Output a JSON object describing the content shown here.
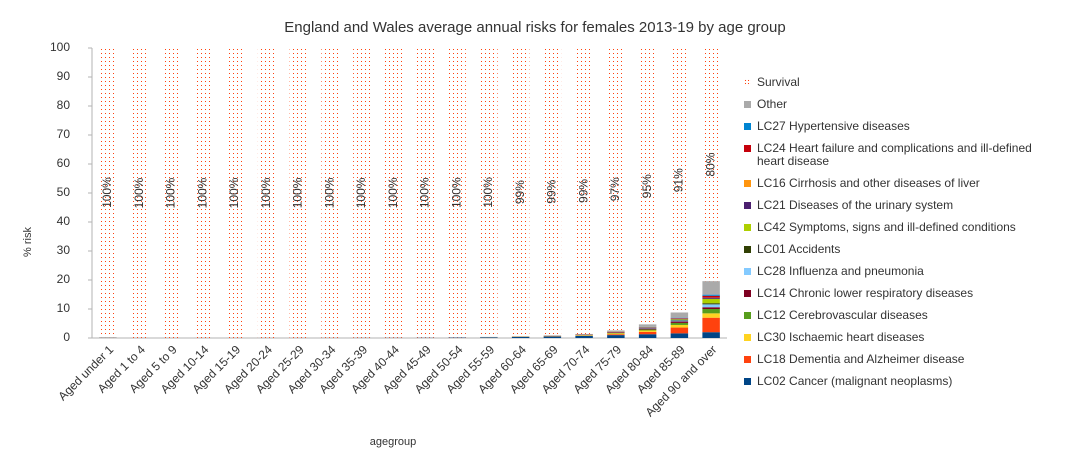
{
  "chart_data": {
    "type": "stacked_bar",
    "title": "England and Wales average annual risks for females 2013-19 by age group",
    "x_label": "agegroup",
    "y_label": "% risk",
    "categories": [
      "Aged under 1",
      "Aged 1 to 4",
      "Aged 5 to 9",
      "Aged 10-14",
      "Aged 15-19",
      "Aged 20-24",
      "Aged 25-29",
      "Aged 30-34",
      "Aged 35-39",
      "Aged 40-44",
      "Aged 45-49",
      "Aged 50-54",
      "Aged 55-59",
      "Aged 60-64",
      "Aged 65-69",
      "Aged 70-74",
      "Aged 75-79",
      "Aged 80-84",
      "Aged 85-89",
      "Aged 90 and over"
    ],
    "ylim": [
      0,
      100
    ],
    "yticks": [
      0,
      10,
      20,
      30,
      40,
      50,
      60,
      70,
      80,
      90,
      100
    ],
    "grid": false,
    "legend": "right",
    "series": [
      {
        "name": "LC02 Cancer (malignant neoplasms)",
        "color": "#004586",
        "values": [
          0,
          0.002,
          0.002,
          0.002,
          0.003,
          0.004,
          0.008,
          0.015,
          0.03,
          0.05,
          0.09,
          0.14,
          0.22,
          0.35,
          0.5,
          0.7,
          1.0,
          1.3,
          1.6,
          2.0
        ]
      },
      {
        "name": "LC18 Dementia and Alzheimer disease",
        "color": "#ff420e",
        "values": [
          0,
          0,
          0,
          0,
          0,
          0,
          0,
          0,
          0,
          0,
          0,
          0,
          0,
          0.01,
          0.02,
          0.08,
          0.3,
          0.8,
          2.0,
          5.0
        ]
      },
      {
        "name": "LC30 Ischaemic heart diseases",
        "color": "#ffd320",
        "values": [
          0,
          0,
          0,
          0,
          0,
          0,
          0,
          0,
          0,
          0,
          0,
          0,
          0.02,
          0.05,
          0.08,
          0.15,
          0.3,
          0.5,
          0.9,
          1.5
        ]
      },
      {
        "name": "LC12 Cerebrovascular diseases",
        "color": "#579d1c",
        "values": [
          0,
          0,
          0,
          0,
          0,
          0,
          0,
          0,
          0,
          0,
          0,
          0,
          0,
          0.03,
          0.04,
          0.08,
          0.18,
          0.35,
          0.7,
          1.5
        ]
      },
      {
        "name": "LC14 Chronic lower respiratory diseases",
        "color": "#7e0021",
        "values": [
          0,
          0,
          0,
          0,
          0,
          0,
          0,
          0,
          0,
          0,
          0,
          0,
          0.02,
          0.04,
          0.08,
          0.14,
          0.25,
          0.35,
          0.5,
          0.6
        ]
      },
      {
        "name": "LC28 Influenza and pneumonia",
        "color": "#83caff",
        "values": [
          0,
          0,
          0,
          0,
          0,
          0,
          0,
          0,
          0,
          0,
          0,
          0,
          0,
          0.01,
          0.01,
          0.03,
          0.07,
          0.15,
          0.35,
          1.0
        ]
      },
      {
        "name": "LC01 Accidents",
        "color": "#314004",
        "values": [
          0,
          0,
          0,
          0,
          0,
          0,
          0,
          0,
          0,
          0,
          0,
          0,
          0,
          0.01,
          0.02,
          0.02,
          0.04,
          0.07,
          0.15,
          0.4
        ]
      },
      {
        "name": "LC42 Symptoms, signs and ill-defined conditions",
        "color": "#aecf00",
        "values": [
          0,
          0,
          0,
          0,
          0,
          0,
          0,
          0,
          0,
          0,
          0,
          0,
          0,
          0.01,
          0.01,
          0.01,
          0.02,
          0.05,
          0.25,
          1.5
        ]
      },
      {
        "name": "LC21 Diseases of the urinary system",
        "color": "#4b1f6f",
        "values": [
          0,
          0,
          0,
          0,
          0,
          0,
          0,
          0,
          0,
          0,
          0,
          0,
          0,
          0,
          0.01,
          0.01,
          0.03,
          0.07,
          0.15,
          0.4
        ]
      },
      {
        "name": "LC16 Cirrhosis and other diseases of liver",
        "color": "#ff950e",
        "values": [
          0,
          0,
          0,
          0,
          0,
          0,
          0,
          0,
          0,
          0,
          0,
          0,
          0.02,
          0.03,
          0.03,
          0.03,
          0.03,
          0.03,
          0.03,
          0.05
        ]
      },
      {
        "name": "LC24 Heart failure and complications and ill-defined heart disease",
        "color": "#c5000b",
        "values": [
          0,
          0,
          0,
          0,
          0,
          0,
          0,
          0,
          0,
          0,
          0,
          0,
          0,
          0,
          0.01,
          0.01,
          0.03,
          0.08,
          0.2,
          0.6
        ]
      },
      {
        "name": "LC27 Hypertensive diseases",
        "color": "#0084d1",
        "values": [
          0,
          0,
          0,
          0,
          0,
          0,
          0,
          0,
          0,
          0,
          0,
          0,
          0,
          0,
          0.01,
          0.02,
          0.04,
          0.08,
          0.17,
          0.4
        ]
      },
      {
        "name": "Other",
        "color": "#aaaaaa",
        "values": [
          0.3,
          0.01,
          0.005,
          0.006,
          0.02,
          0.025,
          0.03,
          0.04,
          0.05,
          0.06,
          0.07,
          0.08,
          0.1,
          0.06,
          0.08,
          0.12,
          0.31,
          0.87,
          1.8,
          4.65
        ]
      },
      {
        "name": "Survival",
        "color": "#ff420e",
        "pattern": "dots",
        "values": [
          99.7,
          99.988,
          99.993,
          99.992,
          99.977,
          99.971,
          99.962,
          99.945,
          99.92,
          99.89,
          99.84,
          99.78,
          99.62,
          99.4,
          99.1,
          98.6,
          97.4,
          95.3,
          91.2,
          80.4
        ],
        "value_labels": [
          "100%",
          "100%",
          "100%",
          "100%",
          "100%",
          "100%",
          "100%",
          "100%",
          "100%",
          "100%",
          "100%",
          "100%",
          "100%",
          "99%",
          "99%",
          "99%",
          "97%",
          "95%",
          "91%",
          "80%"
        ]
      }
    ]
  }
}
